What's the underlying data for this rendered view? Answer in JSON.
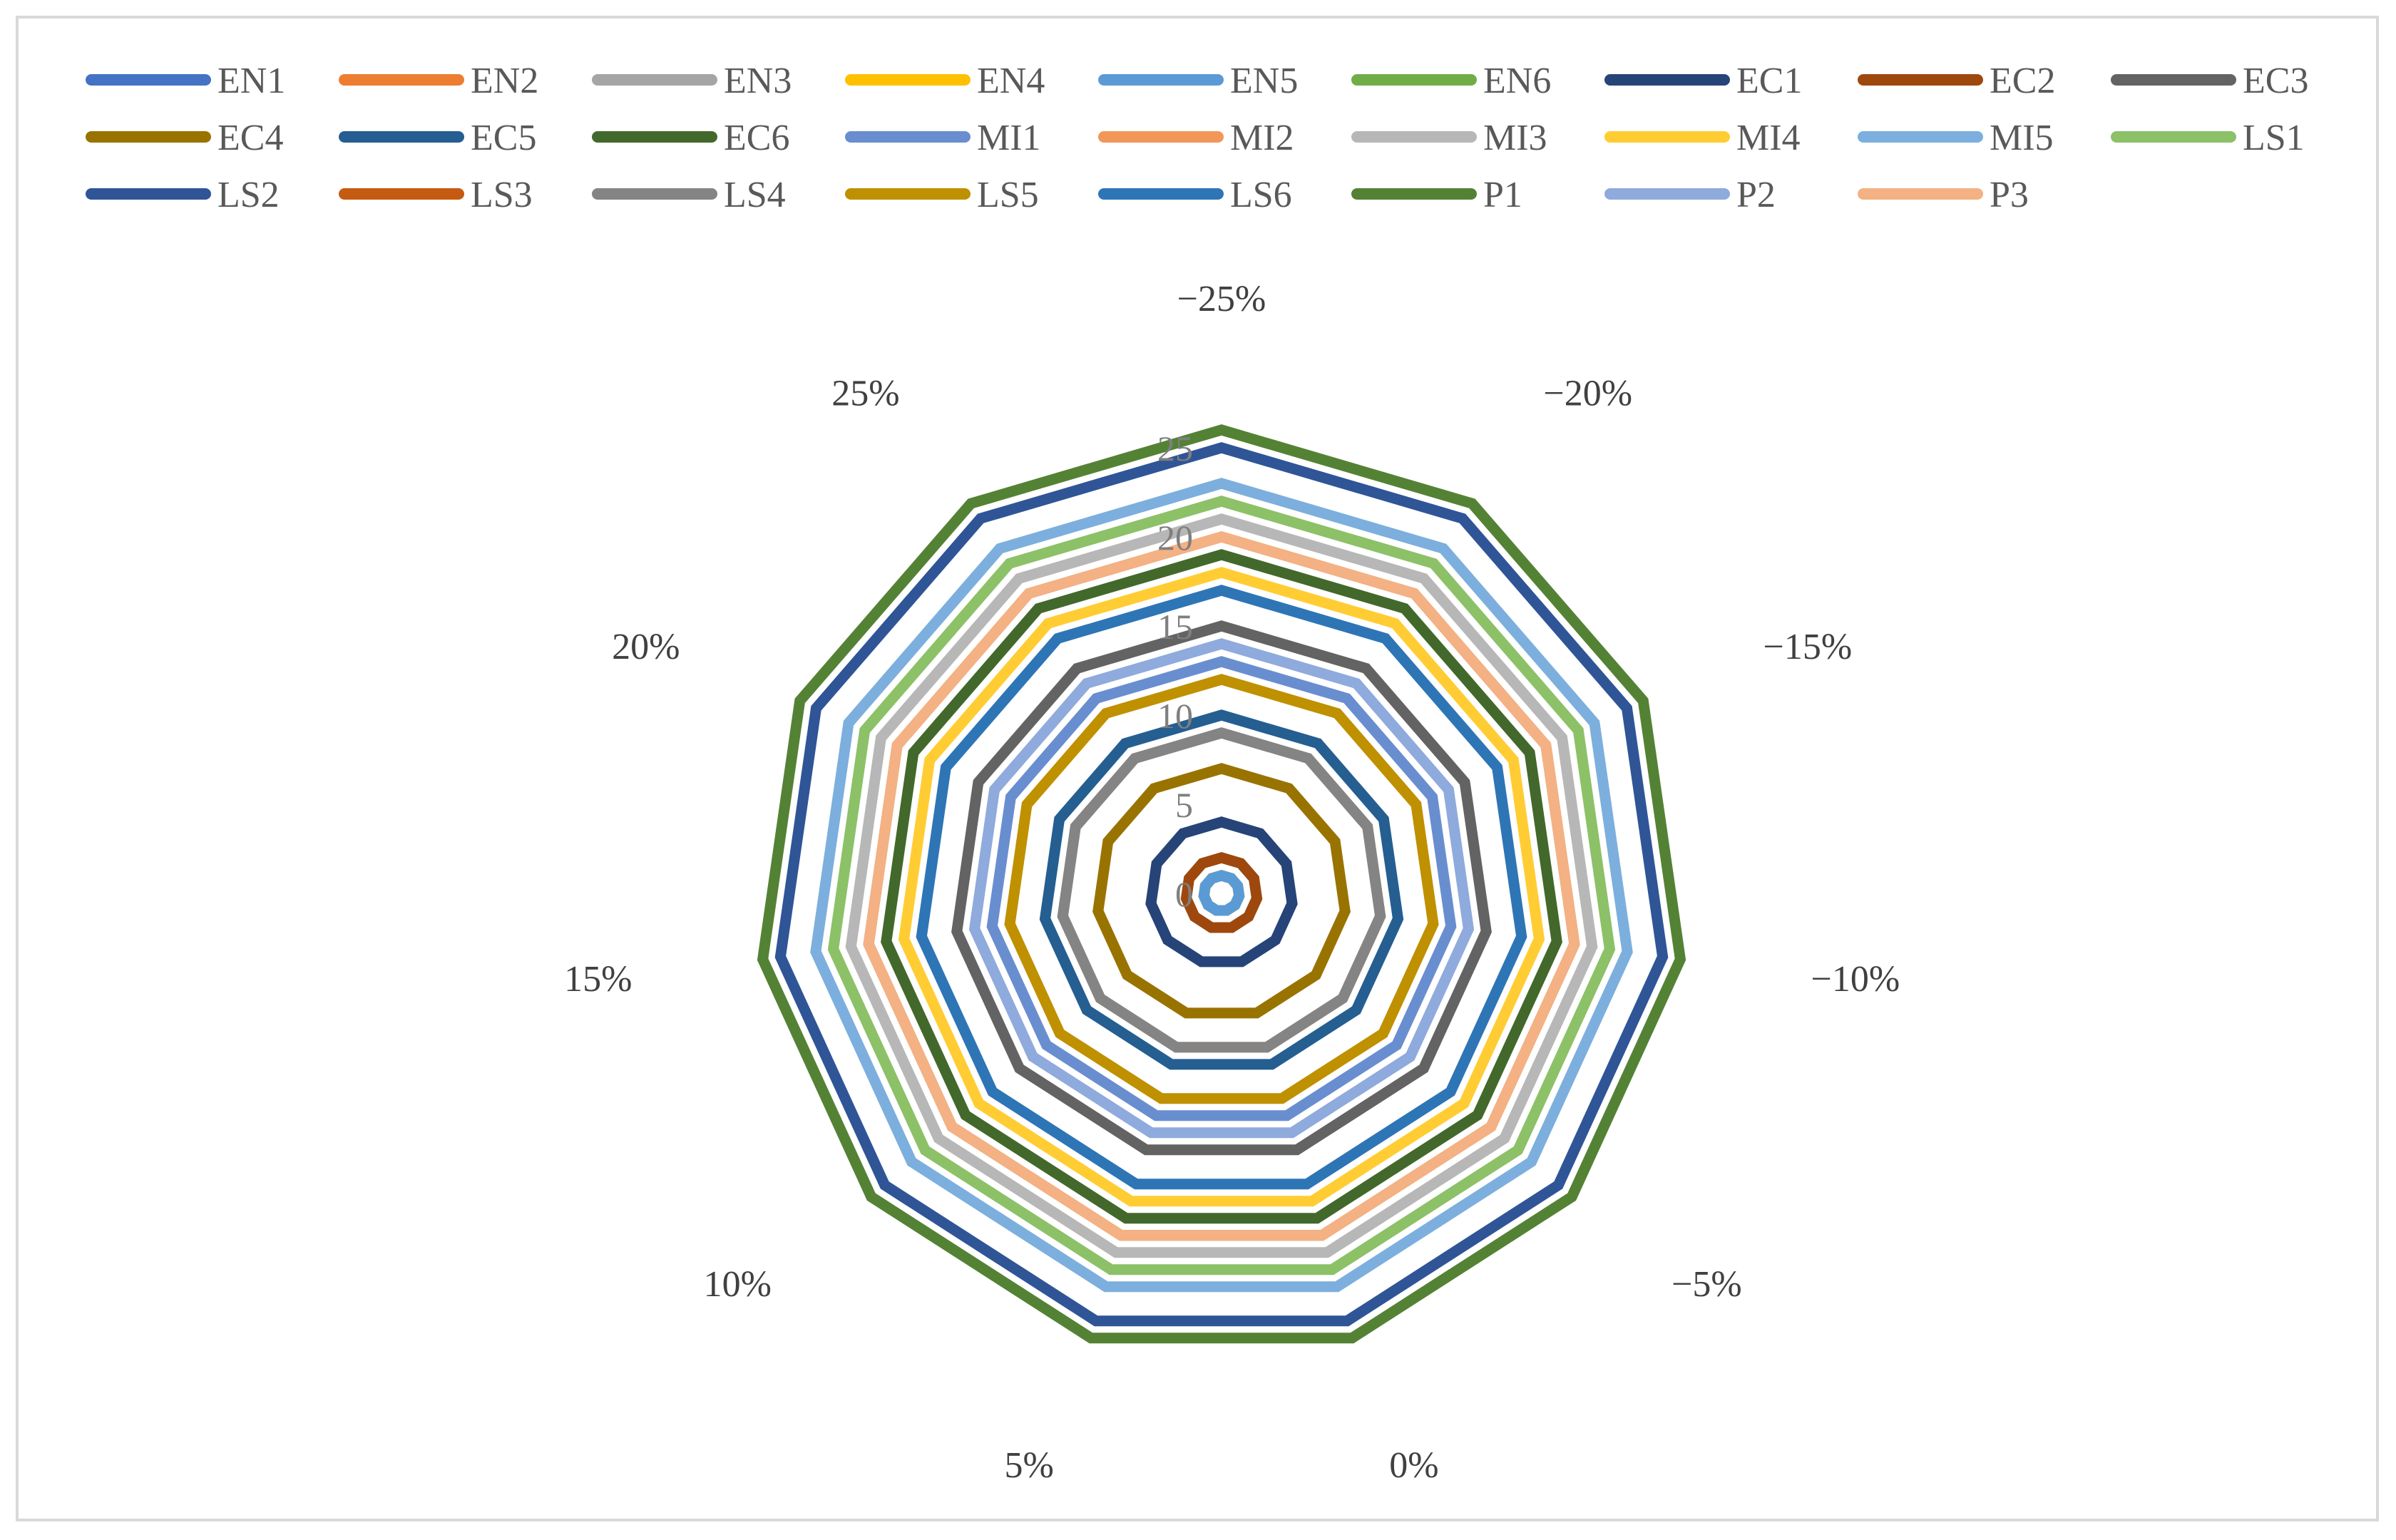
{
  "chart_data": {
    "type": "radar",
    "title": "",
    "categories": [
      "−25%",
      "−20%",
      "−15%",
      "−10%",
      "−5%",
      "0%",
      "5%",
      "10%",
      "15%",
      "20%",
      "25%"
    ],
    "radial_axis": {
      "min": 0,
      "max": 28,
      "ticks": [
        0,
        5,
        10,
        15,
        20,
        25
      ],
      "tick_labels": [
        "0",
        "5",
        "10",
        "15",
        "20",
        "25"
      ]
    },
    "legend_position": "top",
    "series": [
      {
        "name": "EN1",
        "color": "#4472C4",
        "values": [
          1,
          1,
          1,
          1,
          1,
          1,
          1,
          1,
          1,
          1,
          1
        ]
      },
      {
        "name": "EN2",
        "color": "#ED7D31",
        "values": [
          1,
          1,
          1,
          1,
          1,
          1,
          1,
          1,
          1,
          1,
          1
        ]
      },
      {
        "name": "EN3",
        "color": "#A5A5A5",
        "values": [
          1,
          1,
          1,
          1,
          1,
          1,
          1,
          1,
          1,
          1,
          1
        ]
      },
      {
        "name": "EN4",
        "color": "#FFC000",
        "values": [
          1,
          1,
          1,
          1,
          1,
          1,
          1,
          1,
          1,
          1,
          1
        ]
      },
      {
        "name": "EN5",
        "color": "#5B9BD5",
        "values": [
          1,
          1,
          1,
          1,
          1,
          1,
          1,
          1,
          1,
          1,
          1
        ]
      },
      {
        "name": "EN6",
        "color": "#70AD47",
        "values": [
          2,
          2,
          2,
          2,
          2,
          2,
          2,
          2,
          2,
          2,
          2
        ]
      },
      {
        "name": "EC1",
        "color": "#264478",
        "values": [
          4,
          4,
          4,
          4,
          4,
          4,
          4,
          4,
          4,
          4,
          4
        ]
      },
      {
        "name": "EC2",
        "color": "#9E480E",
        "values": [
          2,
          2,
          2,
          2,
          2,
          2,
          2,
          2,
          2,
          2,
          2
        ]
      },
      {
        "name": "EC3",
        "color": "#636363",
        "values": [
          15,
          15,
          15,
          15,
          15,
          15,
          15,
          15,
          15,
          15,
          15
        ]
      },
      {
        "name": "EC4",
        "color": "#997300",
        "values": [
          7,
          7,
          7,
          7,
          7,
          7,
          7,
          7,
          7,
          7,
          7
        ]
      },
      {
        "name": "EC5",
        "color": "#255E91",
        "values": [
          10,
          10,
          10,
          10,
          10,
          10,
          10,
          10,
          10,
          10,
          10
        ]
      },
      {
        "name": "EC6",
        "color": "#43682B",
        "values": [
          19,
          19,
          19,
          19,
          19,
          19,
          19,
          19,
          19,
          19,
          19
        ]
      },
      {
        "name": "MI1",
        "color": "#698ED0",
        "values": [
          13,
          13,
          13,
          13,
          13,
          13,
          13,
          13,
          13,
          13,
          13
        ]
      },
      {
        "name": "MI2",
        "color": "#F1975A",
        "values": [
          9,
          9,
          9,
          9,
          9,
          9,
          9,
          9,
          9,
          9,
          9
        ]
      },
      {
        "name": "MI3",
        "color": "#B7B7B7",
        "values": [
          21,
          21,
          21,
          21,
          21,
          21,
          21,
          21,
          21,
          21,
          21
        ]
      },
      {
        "name": "MI4",
        "color": "#FFCD33",
        "values": [
          18,
          18,
          18,
          18,
          18,
          18,
          18,
          18,
          18,
          18,
          18
        ]
      },
      {
        "name": "MI5",
        "color": "#7CAFDD",
        "values": [
          23,
          23,
          23,
          23,
          23,
          23,
          23,
          23,
          23,
          23,
          23
        ]
      },
      {
        "name": "LS1",
        "color": "#8CC168",
        "values": [
          22,
          22,
          22,
          22,
          22,
          22,
          22,
          22,
          22,
          22,
          22
        ]
      },
      {
        "name": "LS2",
        "color": "#2F5597",
        "values": [
          25,
          25,
          25,
          25,
          25,
          25,
          25,
          25,
          25,
          25,
          25
        ]
      },
      {
        "name": "LS3",
        "color": "#C55A11",
        "values": [
          20,
          20,
          20,
          20,
          20,
          20,
          20,
          20,
          20,
          20,
          20
        ]
      },
      {
        "name": "LS4",
        "color": "#848484",
        "values": [
          9,
          9,
          9,
          9,
          9,
          9,
          9,
          9,
          9,
          9,
          9
        ]
      },
      {
        "name": "LS5",
        "color": "#BF9000",
        "values": [
          12,
          12,
          12,
          12,
          12,
          12,
          12,
          12,
          12,
          12,
          12
        ]
      },
      {
        "name": "LS6",
        "color": "#2E75B6",
        "values": [
          17,
          17,
          17,
          17,
          17,
          17,
          17,
          17,
          17,
          17,
          17
        ]
      },
      {
        "name": "P1",
        "color": "#548235",
        "values": [
          26,
          26,
          26,
          26,
          26,
          26,
          26,
          26,
          26,
          26,
          26
        ]
      },
      {
        "name": "P2",
        "color": "#8FAADC",
        "values": [
          14,
          14,
          14,
          14,
          14,
          14,
          14,
          14,
          14,
          14,
          14
        ]
      },
      {
        "name": "P3",
        "color": "#F4B183",
        "values": [
          20,
          20,
          20,
          20,
          20,
          20,
          20,
          20,
          20,
          20,
          20
        ]
      }
    ]
  }
}
